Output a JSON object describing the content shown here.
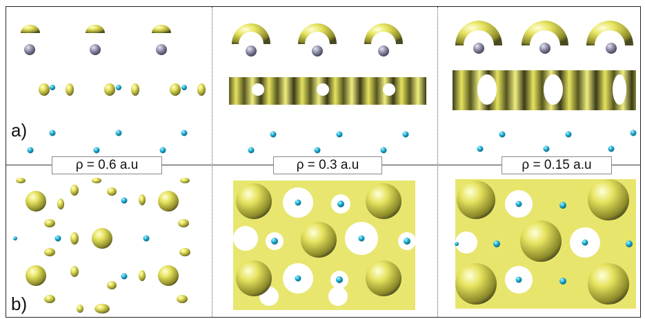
{
  "panels": {
    "a_label": "a)",
    "b_label": "b)"
  },
  "density_labels": [
    "ρ = 0.6 a.u",
    "ρ = 0.3 a.u",
    "ρ = 0.15 a.u"
  ],
  "colors": {
    "isosurface": "#e6e35f",
    "isosurface_shadow": "#4a4a20",
    "metal_atom": "#8a8aa6",
    "light_atom": "#2bb7d6",
    "frame": "#222222"
  }
}
